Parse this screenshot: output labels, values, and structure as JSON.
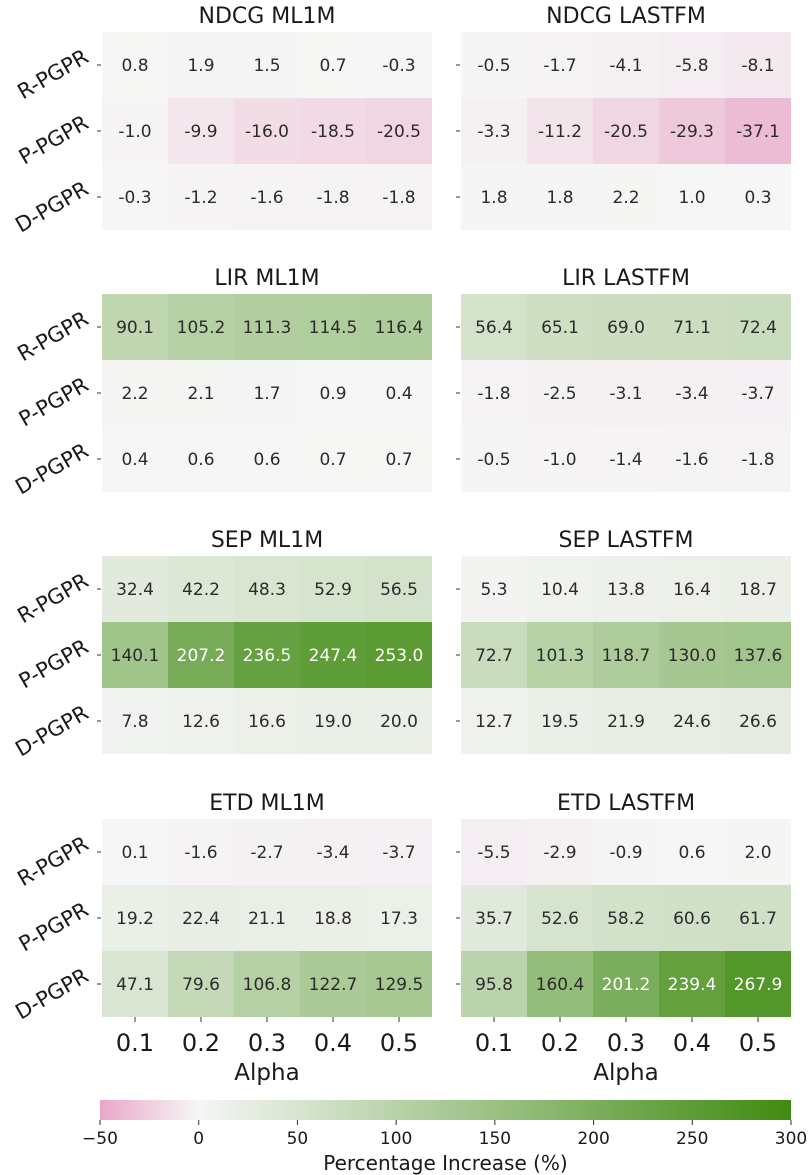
{
  "chart_data": [
    {
      "type": "heatmap",
      "title": "NDCG ML1M",
      "rows": [
        "R-PGPR",
        "P-PGPR",
        "D-PGPR"
      ],
      "cols": [
        "",
        "",
        "",
        "",
        ""
      ],
      "values": [
        [
          0.8,
          1.9,
          1.5,
          0.7,
          -0.3
        ],
        [
          -1.0,
          -9.9,
          -16.0,
          -18.5,
          -20.5
        ],
        [
          -0.3,
          -1.2,
          -1.6,
          -1.8,
          -1.8
        ]
      ],
      "labels": [
        [
          "0.8",
          "1.9",
          "1.5",
          "0.7",
          "-0.3"
        ],
        [
          "-1.0",
          "-9.9",
          "-16.0",
          "-18.5",
          "-20.5"
        ],
        [
          "-0.3",
          "-1.2",
          "-1.6",
          "-1.8",
          "-1.8"
        ]
      ],
      "xlabel": ""
    },
    {
      "type": "heatmap",
      "title": "NDCG LASTFM",
      "rows": [
        "",
        "",
        ""
      ],
      "cols": [
        "",
        "",
        "",
        "",
        ""
      ],
      "values": [
        [
          -0.5,
          -1.7,
          -4.1,
          -5.8,
          -8.1
        ],
        [
          -3.3,
          -11.2,
          -20.5,
          -29.3,
          -37.1
        ],
        [
          1.8,
          1.8,
          2.2,
          1.0,
          0.3
        ]
      ],
      "labels": [
        [
          "-0.5",
          "-1.7",
          "-4.1",
          "-5.8",
          "-8.1"
        ],
        [
          "-3.3",
          "-11.2",
          "-20.5",
          "-29.3",
          "-37.1"
        ],
        [
          "1.8",
          "1.8",
          "2.2",
          "1.0",
          "0.3"
        ]
      ],
      "xlabel": ""
    },
    {
      "type": "heatmap",
      "title": "LIR ML1M",
      "rows": [
        "R-PGPR",
        "P-PGPR",
        "D-PGPR"
      ],
      "cols": [
        "",
        "",
        "",
        "",
        ""
      ],
      "values": [
        [
          90.1,
          105.2,
          111.3,
          114.5,
          116.4
        ],
        [
          2.2,
          2.1,
          1.7,
          0.9,
          0.4
        ],
        [
          0.4,
          0.6,
          0.6,
          0.7,
          0.7
        ]
      ],
      "labels": [
        [
          "90.1",
          "105.2",
          "111.3",
          "114.5",
          "116.4"
        ],
        [
          "2.2",
          "2.1",
          "1.7",
          "0.9",
          "0.4"
        ],
        [
          "0.4",
          "0.6",
          "0.6",
          "0.7",
          "0.7"
        ]
      ],
      "xlabel": ""
    },
    {
      "type": "heatmap",
      "title": "LIR LASTFM",
      "rows": [
        "",
        "",
        ""
      ],
      "cols": [
        "",
        "",
        "",
        "",
        ""
      ],
      "values": [
        [
          56.4,
          65.1,
          69.0,
          71.1,
          72.4
        ],
        [
          -1.8,
          -2.5,
          -3.1,
          -3.4,
          -3.7
        ],
        [
          -0.5,
          -1.0,
          -1.4,
          -1.6,
          -1.8
        ]
      ],
      "labels": [
        [
          "56.4",
          "65.1",
          "69.0",
          "71.1",
          "72.4"
        ],
        [
          "-1.8",
          "-2.5",
          "-3.1",
          "-3.4",
          "-3.7"
        ],
        [
          "-0.5",
          "-1.0",
          "-1.4",
          "-1.6",
          "-1.8"
        ]
      ],
      "xlabel": ""
    },
    {
      "type": "heatmap",
      "title": "SEP ML1M",
      "rows": [
        "R-PGPR",
        "P-PGPR",
        "D-PGPR"
      ],
      "cols": [
        "",
        "",
        "",
        "",
        ""
      ],
      "values": [
        [
          32.4,
          42.2,
          48.3,
          52.9,
          56.5
        ],
        [
          140.1,
          207.2,
          236.5,
          247.4,
          253.0
        ],
        [
          7.8,
          12.6,
          16.6,
          19.0,
          20.0
        ]
      ],
      "labels": [
        [
          "32.4",
          "42.2",
          "48.3",
          "52.9",
          "56.5"
        ],
        [
          "140.1",
          "207.2",
          "236.5",
          "247.4",
          "253.0"
        ],
        [
          "7.8",
          "12.6",
          "16.6",
          "19.0",
          "20.0"
        ]
      ],
      "xlabel": ""
    },
    {
      "type": "heatmap",
      "title": "SEP LASTFM",
      "rows": [
        "",
        "",
        ""
      ],
      "cols": [
        "",
        "",
        "",
        "",
        ""
      ],
      "values": [
        [
          5.3,
          10.4,
          13.8,
          16.4,
          18.7
        ],
        [
          72.7,
          101.3,
          118.7,
          130.0,
          137.6
        ],
        [
          12.7,
          19.5,
          21.9,
          24.6,
          26.6
        ]
      ],
      "labels": [
        [
          "5.3",
          "10.4",
          "13.8",
          "16.4",
          "18.7"
        ],
        [
          "72.7",
          "101.3",
          "118.7",
          "130.0",
          "137.6"
        ],
        [
          "12.7",
          "19.5",
          "21.9",
          "24.6",
          "26.6"
        ]
      ],
      "xlabel": ""
    },
    {
      "type": "heatmap",
      "title": "ETD ML1M",
      "rows": [
        "R-PGPR",
        "P-PGPR",
        "D-PGPR"
      ],
      "cols": [
        "0.1",
        "0.2",
        "0.3",
        "0.4",
        "0.5"
      ],
      "values": [
        [
          0.1,
          -1.6,
          -2.7,
          -3.4,
          -3.7
        ],
        [
          19.2,
          22.4,
          21.1,
          18.8,
          17.3
        ],
        [
          47.1,
          79.6,
          106.8,
          122.7,
          129.5
        ]
      ],
      "labels": [
        [
          "0.1",
          "-1.6",
          "-2.7",
          "-3.4",
          "-3.7"
        ],
        [
          "19.2",
          "22.4",
          "21.1",
          "18.8",
          "17.3"
        ],
        [
          "47.1",
          "79.6",
          "106.8",
          "122.7",
          "129.5"
        ]
      ],
      "xlabel": "Alpha"
    },
    {
      "type": "heatmap",
      "title": "ETD LASTFM",
      "rows": [
        "",
        "",
        ""
      ],
      "cols": [
        "0.1",
        "0.2",
        "0.3",
        "0.4",
        "0.5"
      ],
      "values": [
        [
          -5.5,
          -2.9,
          -0.9,
          0.6,
          2.0
        ],
        [
          35.7,
          52.6,
          58.2,
          60.6,
          61.7
        ],
        [
          95.8,
          160.4,
          201.2,
          239.4,
          267.9
        ]
      ],
      "labels": [
        [
          "-5.5",
          "-2.9",
          "-0.9",
          "0.6",
          "2.0"
        ],
        [
          "35.7",
          "52.6",
          "58.2",
          "60.6",
          "61.7"
        ],
        [
          "95.8",
          "160.4",
          "201.2",
          "239.4",
          "267.9"
        ]
      ],
      "xlabel": "Alpha"
    }
  ],
  "colorbar": {
    "label": "Percentage Increase (%)",
    "range": [
      -50,
      300
    ],
    "ticks": [
      -50,
      0,
      50,
      100,
      150,
      200,
      250,
      300
    ],
    "tick_labels": [
      "−50",
      "0",
      "50",
      "100",
      "150",
      "200",
      "250",
      "300"
    ],
    "colors": {
      "low": "#e8a7c8",
      "mid": "#f6f6f6",
      "high": "#3f8a10"
    }
  }
}
